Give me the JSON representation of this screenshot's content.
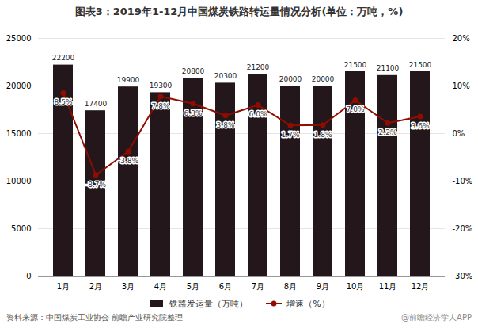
{
  "chart_data": {
    "type": "bar",
    "title": "图表3：2019年1-12月中国煤炭铁路转运量情况分析(单位：万吨，%)",
    "categories": [
      "1月",
      "2月",
      "3月",
      "4月",
      "5月",
      "6月",
      "7月",
      "8月",
      "9月",
      "10月",
      "11月",
      "12月"
    ],
    "series": [
      {
        "name": "铁路发运量（万吨）",
        "type": "bar",
        "values": [
          22200,
          17400,
          19900,
          19300,
          20800,
          20300,
          21200,
          20000,
          20000,
          21500,
          21100,
          21500
        ]
      },
      {
        "name": "增速（%）",
        "type": "line",
        "axis": "y2",
        "marker": "circle",
        "values": [
          8.5,
          -8.7,
          -3.8,
          7.8,
          6.3,
          3.8,
          6.0,
          1.7,
          1.8,
          7.0,
          2.2,
          3.6
        ],
        "value_labels": [
          "8.5%",
          "-8.7%",
          "-3.8%",
          "7.8%",
          "6.3%",
          "3.8%",
          "6.0%",
          "1.7%",
          "1.8%",
          "7.0%",
          "2.2%",
          "3.6%"
        ]
      }
    ],
    "ylim": [
      0,
      25000
    ],
    "yticks": [
      0,
      5000,
      10000,
      15000,
      20000,
      25000
    ],
    "y2lim": [
      -30,
      20
    ],
    "y2ticks": [
      {
        "value": -30,
        "label": "-30%"
      },
      {
        "value": -20,
        "label": "-20%"
      },
      {
        "value": -10,
        "label": "-10%"
      },
      {
        "value": 0,
        "label": "0%"
      },
      {
        "value": 10,
        "label": "10%"
      },
      {
        "value": 20,
        "label": "20%"
      }
    ],
    "grid": true,
    "legend": "bottom",
    "data_labels": true,
    "annotations": [
      "资料来源：中国煤炭工业协会 前瞻产业研究院整理",
      "@前瞻经济学人APP"
    ]
  }
}
